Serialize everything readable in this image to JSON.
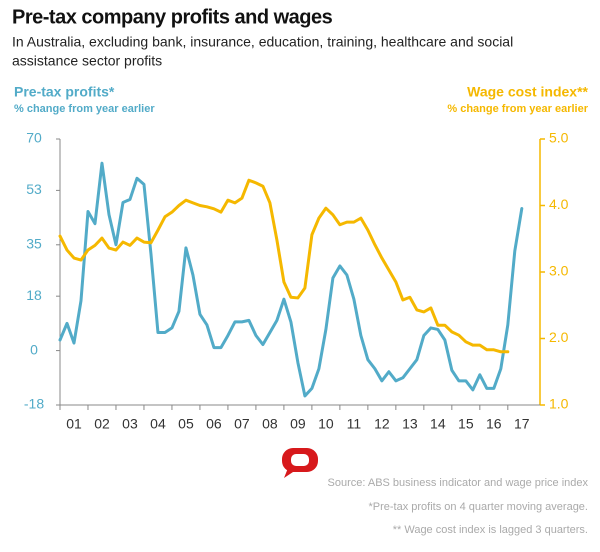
{
  "chart_data": {
    "type": "line",
    "title": "Pre-tax company profits and wages",
    "subtitle": [
      "In Australia, excluding bank, insurance, education, training, healthcare and social",
      "assistance sector profits"
    ],
    "y_label_sub": "% change from year earlier",
    "y2_label_sub": "% change from year earlier",
    "notes": [
      "Source: ABS business indicator and wage price index",
      "*Pre-tax profits on 4 quarter moving average.",
      "** Wage cost index is lagged 3 quarters."
    ],
    "x": [
      2000.5,
      2000.75,
      2001,
      2001.25,
      2001.5,
      2001.75,
      2002,
      2002.25,
      2002.5,
      2002.75,
      2003,
      2003.25,
      2003.5,
      2003.75,
      2004,
      2004.25,
      2004.5,
      2004.75,
      2005,
      2005.25,
      2005.5,
      2005.75,
      2006,
      2006.25,
      2006.5,
      2006.75,
      2007,
      2007.25,
      2007.5,
      2007.75,
      2008,
      2008.25,
      2008.5,
      2008.75,
      2009,
      2009.25,
      2009.5,
      2009.75,
      2010,
      2010.25,
      2010.5,
      2010.75,
      2011,
      2011.25,
      2011.5,
      2011.75,
      2012,
      2012.25,
      2012.5,
      2012.75,
      2013,
      2013.25,
      2013.5,
      2013.75,
      2014,
      2014.25,
      2014.5,
      2014.75,
      2015,
      2015.25,
      2015.5,
      2015.75,
      2016,
      2016.25,
      2016.5,
      2016.75,
      2017
    ],
    "xlim": [
      2000.5,
      2017.65
    ],
    "xticks": [
      {
        "value": 2001,
        "label": "01"
      },
      {
        "value": 2002,
        "label": "02"
      },
      {
        "value": 2003,
        "label": "03"
      },
      {
        "value": 2004,
        "label": "04"
      },
      {
        "value": 2005,
        "label": "05"
      },
      {
        "value": 2006,
        "label": "06"
      },
      {
        "value": 2007,
        "label": "07"
      },
      {
        "value": 2008,
        "label": "08"
      },
      {
        "value": 2009,
        "label": "09"
      },
      {
        "value": 2010,
        "label": "10"
      },
      {
        "value": 2011,
        "label": "11"
      },
      {
        "value": 2012,
        "label": "12"
      },
      {
        "value": 2013,
        "label": "13"
      },
      {
        "value": 2014,
        "label": "14"
      },
      {
        "value": 2015,
        "label": "15"
      },
      {
        "value": 2016,
        "label": "16"
      },
      {
        "value": 2017,
        "label": "17"
      }
    ],
    "ylim": [
      -18,
      70
    ],
    "yticks": [
      -18,
      0,
      18,
      35,
      53,
      70
    ],
    "y2lim": [
      1,
      5
    ],
    "y2ticks": [
      {
        "value": 1,
        "label": "1.0"
      },
      {
        "value": 2,
        "label": "2.0"
      },
      {
        "value": 3,
        "label": "3.0"
      },
      {
        "value": 4,
        "label": "4.0"
      },
      {
        "value": 5,
        "label": "5.0"
      }
    ],
    "grid": false,
    "series": [
      {
        "name": "Pre-tax profits*",
        "color": "#52abc8",
        "values": [
          3.5,
          9,
          2.5,
          16.5,
          46,
          42,
          62,
          45,
          35,
          49,
          50,
          57,
          55,
          32,
          6,
          6,
          7.5,
          13,
          34,
          25,
          12,
          8.5,
          1,
          1,
          5,
          9.5,
          9.5,
          10,
          5,
          2,
          6,
          10,
          17,
          9.5,
          -4,
          -15,
          -12.5,
          -6,
          7,
          24,
          28,
          25,
          17,
          5,
          -3,
          -6,
          -10,
          -7,
          -10,
          -9,
          -6,
          -3,
          5,
          7.5,
          7,
          3.5,
          -6.5,
          -10,
          -10,
          -13,
          -8,
          -12.5,
          -12.5,
          -6,
          8.5,
          33,
          47
        ]
      },
      {
        "name": "Wage cost index**",
        "color": "#f5b800",
        "axis": "y2",
        "values": [
          3.54,
          3.33,
          3.21,
          3.18,
          3.33,
          3.4,
          3.51,
          3.36,
          3.33,
          3.45,
          3.4,
          3.51,
          3.45,
          3.44,
          3.63,
          3.83,
          3.9,
          4.0,
          4.08,
          4.04,
          4.0,
          3.98,
          3.95,
          3.9,
          4.08,
          4.04,
          4.11,
          4.38,
          4.34,
          4.29,
          4.04,
          3.48,
          2.85,
          2.62,
          2.61,
          2.76,
          3.56,
          3.81,
          3.96,
          3.86,
          3.71,
          3.75,
          3.75,
          3.81,
          3.63,
          3.41,
          3.21,
          3.03,
          2.85,
          2.58,
          2.62,
          2.43,
          2.4,
          2.46,
          2.2,
          2.2,
          2.1,
          2.05,
          1.95,
          1.9,
          1.9,
          1.83,
          1.83,
          1.8,
          1.8,
          null,
          null
        ]
      }
    ]
  }
}
